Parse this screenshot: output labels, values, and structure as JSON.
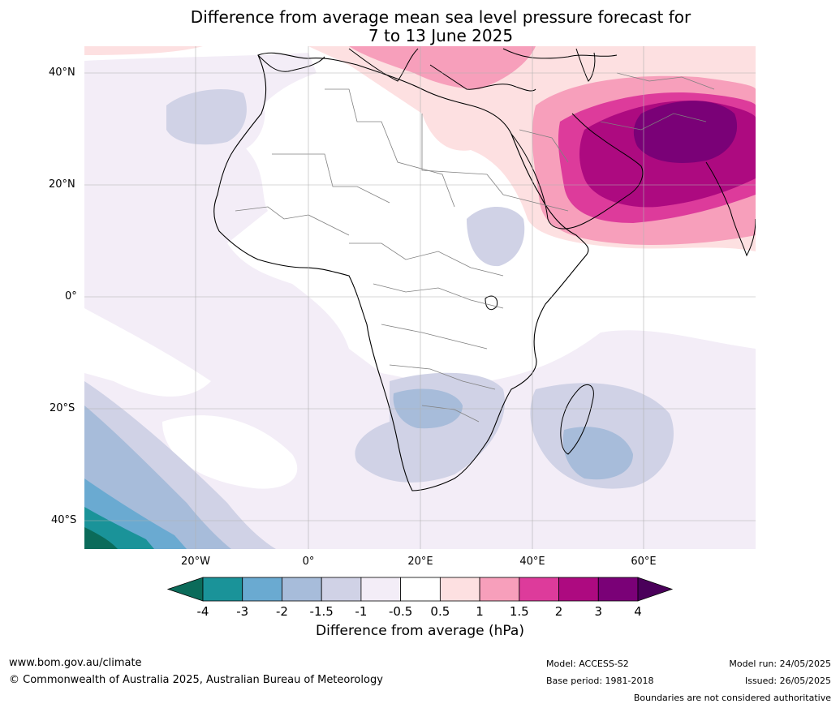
{
  "title_line1": "Difference from average mean sea level pressure forecast for",
  "title_line2": "7 to 13 June 2025",
  "lat_ticks": [
    "40°N",
    "20°N",
    "0°",
    "20°S",
    "40°S"
  ],
  "lon_ticks": [
    "20°W",
    "0°",
    "20°E",
    "40°E",
    "60°E"
  ],
  "colorbar": {
    "title": "Difference from average (hPa)",
    "labels": [
      "-4",
      "-3",
      "-2",
      "-1.5",
      "-1",
      "-0.5",
      "0.5",
      "1",
      "1.5",
      "2",
      "3",
      "4"
    ],
    "colors": [
      "#0b6b5a",
      "#1a9399",
      "#6aaad1",
      "#a7bcda",
      "#d0d2e6",
      "#f3edf7",
      "#ffffff",
      "#fde0e1",
      "#f79fbb",
      "#dd3b9b",
      "#ad0a80",
      "#7a0177",
      "#4a005a"
    ]
  },
  "footer": {
    "url": "www.bom.gov.au/climate",
    "copyright": "© Commonwealth of Australia 2025, Australian Bureau of Meteorology",
    "model": "Model: ACCESS-S2",
    "base_period": "Base period: 1981-2018",
    "model_run": "Model run: 24/05/2025",
    "issued": "Issued: 26/05/2025",
    "disclaimer": "Boundaries are not considered authoritative"
  }
}
